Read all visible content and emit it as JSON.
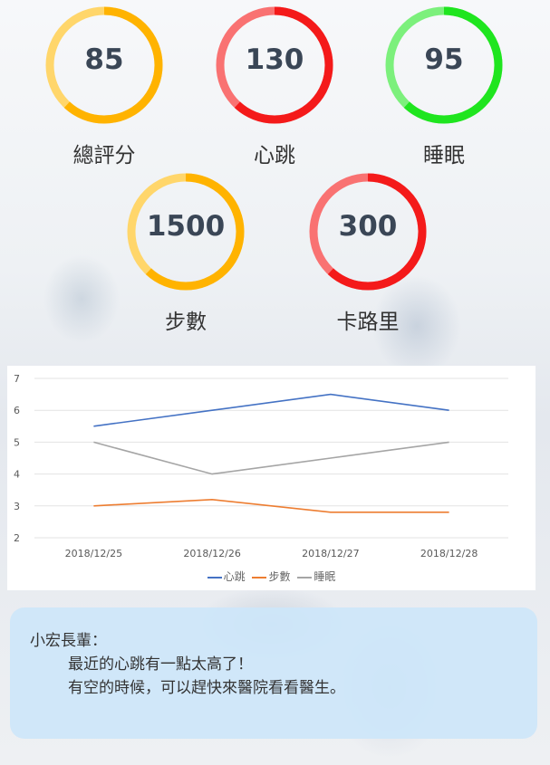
{
  "metrics": [
    {
      "value": "85",
      "label": "總評分",
      "color": "#FFB300",
      "light": "#FFD66B"
    },
    {
      "value": "130",
      "label": "心跳",
      "color": "#F41A1A",
      "light": "#F97272"
    },
    {
      "value": "95",
      "label": "睡眠",
      "color": "#1FE51F",
      "light": "#7CF07C"
    },
    {
      "value": "1500",
      "label": "步數",
      "color": "#FFB300",
      "light": "#FFD66B"
    },
    {
      "value": "300",
      "label": "卡路里",
      "color": "#F41A1A",
      "light": "#F97272"
    }
  ],
  "chart_data": {
    "type": "line",
    "categories": [
      "2018/12/25",
      "2018/12/26",
      "2018/12/27",
      "2018/12/28"
    ],
    "series": [
      {
        "name": "心跳",
        "values": [
          5.5,
          6,
          6.5,
          6
        ],
        "color": "#4472C4"
      },
      {
        "name": "步數",
        "values": [
          3,
          3.2,
          2.8,
          2.8
        ],
        "color": "#ED7D31"
      },
      {
        "name": "睡眠",
        "values": [
          5,
          4,
          4.5,
          5
        ],
        "color": "#A5A5A5"
      }
    ],
    "yticks": [
      "2",
      "3",
      "4",
      "5",
      "6",
      "7"
    ],
    "ylim": [
      2,
      7
    ],
    "grid": true,
    "legend": "bottom"
  },
  "message": {
    "greeting": "小宏長輩：",
    "line1": "最近的心跳有一點太高了！",
    "line2": "有空的時候，可以趕快來醫院看看醫生。"
  }
}
